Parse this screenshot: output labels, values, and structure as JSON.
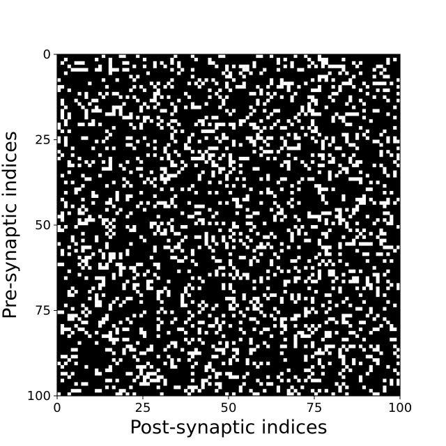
{
  "chart_data": {
    "type": "heatmap",
    "title": "",
    "xlabel": "Post-synaptic indices",
    "ylabel": "Pre-synaptic indices",
    "xlim": [
      0,
      100
    ],
    "ylim": [
      100,
      0
    ],
    "xticks": [
      "0",
      "25",
      "50",
      "75",
      "100"
    ],
    "yticks": [
      "0",
      "25",
      "50",
      "75",
      "100"
    ],
    "rows": 100,
    "cols": 100,
    "colormap": {
      "0": "#000000",
      "1": "#ffffff"
    },
    "connection_probability": 0.2,
    "grid": false,
    "legend": "none",
    "values_note": "binary connectivity matrix (1 = connection shown white, 0 = black)"
  }
}
